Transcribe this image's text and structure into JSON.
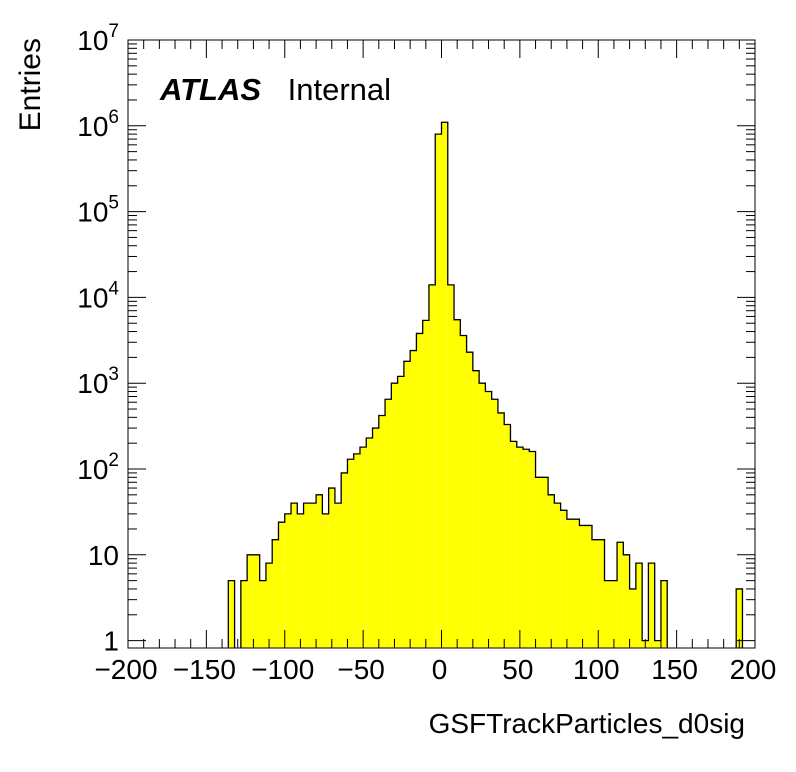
{
  "chart_data": {
    "type": "bar",
    "histogram": true,
    "ylabel": "Entries",
    "xlabel": "GSFTrackParticles_d0sig",
    "annotation": {
      "bold": "ATLAS",
      "normal": "Internal"
    },
    "xlim": [
      -200,
      200
    ],
    "ylim": [
      0.82,
      10000000
    ],
    "yscale": "log",
    "x_ticks": [
      "−200",
      "−150",
      "−100",
      "−50",
      "0",
      "50",
      "100",
      "150",
      "200"
    ],
    "y_ticks": [
      {
        "value": 1,
        "base": "1",
        "exp": ""
      },
      {
        "value": 10,
        "base": "10",
        "exp": ""
      },
      {
        "value": 100,
        "base": "10",
        "exp": "2"
      },
      {
        "value": 1000,
        "base": "10",
        "exp": "3"
      },
      {
        "value": 10000,
        "base": "10",
        "exp": "4"
      },
      {
        "value": 100000,
        "base": "10",
        "exp": "5"
      },
      {
        "value": 1000000,
        "base": "10",
        "exp": "6"
      },
      {
        "value": 10000000,
        "base": "10",
        "exp": "7"
      }
    ],
    "bin_width": 4,
    "fill_color": "#ffff00",
    "line_color": "#000000",
    "bins": [
      {
        "x": -134,
        "y": 5
      },
      {
        "x": -130,
        "y": 0
      },
      {
        "x": -126,
        "y": 5
      },
      {
        "x": -122,
        "y": 10
      },
      {
        "x": -118,
        "y": 10
      },
      {
        "x": -114,
        "y": 5
      },
      {
        "x": -110,
        "y": 8
      },
      {
        "x": -106,
        "y": 15
      },
      {
        "x": -102,
        "y": 24
      },
      {
        "x": -98,
        "y": 30
      },
      {
        "x": -94,
        "y": 40
      },
      {
        "x": -90,
        "y": 30
      },
      {
        "x": -86,
        "y": 40
      },
      {
        "x": -82,
        "y": 40
      },
      {
        "x": -78,
        "y": 50
      },
      {
        "x": -74,
        "y": 30
      },
      {
        "x": -70,
        "y": 60
      },
      {
        "x": -66,
        "y": 40
      },
      {
        "x": -62,
        "y": 90
      },
      {
        "x": -58,
        "y": 130
      },
      {
        "x": -54,
        "y": 150
      },
      {
        "x": -50,
        "y": 180
      },
      {
        "x": -46,
        "y": 230
      },
      {
        "x": -42,
        "y": 300
      },
      {
        "x": -38,
        "y": 420
      },
      {
        "x": -34,
        "y": 650
      },
      {
        "x": -30,
        "y": 1000
      },
      {
        "x": -26,
        "y": 1200
      },
      {
        "x": -22,
        "y": 1800
      },
      {
        "x": -18,
        "y": 2400
      },
      {
        "x": -14,
        "y": 3800
      },
      {
        "x": -10,
        "y": 5400
      },
      {
        "x": -6,
        "y": 14000
      },
      {
        "x": -2,
        "y": 800000
      },
      {
        "x": 2,
        "y": 1100000
      },
      {
        "x": 6,
        "y": 14000
      },
      {
        "x": 10,
        "y": 5500
      },
      {
        "x": 14,
        "y": 3600
      },
      {
        "x": 18,
        "y": 2300
      },
      {
        "x": 22,
        "y": 1400
      },
      {
        "x": 26,
        "y": 1000
      },
      {
        "x": 30,
        "y": 800
      },
      {
        "x": 34,
        "y": 650
      },
      {
        "x": 38,
        "y": 450
      },
      {
        "x": 42,
        "y": 330
      },
      {
        "x": 46,
        "y": 210
      },
      {
        "x": 50,
        "y": 180
      },
      {
        "x": 54,
        "y": 170
      },
      {
        "x": 58,
        "y": 160
      },
      {
        "x": 62,
        "y": 80
      },
      {
        "x": 66,
        "y": 80
      },
      {
        "x": 70,
        "y": 50
      },
      {
        "x": 74,
        "y": 40
      },
      {
        "x": 78,
        "y": 33
      },
      {
        "x": 82,
        "y": 26
      },
      {
        "x": 86,
        "y": 26
      },
      {
        "x": 90,
        "y": 22
      },
      {
        "x": 94,
        "y": 22
      },
      {
        "x": 98,
        "y": 15
      },
      {
        "x": 102,
        "y": 15
      },
      {
        "x": 106,
        "y": 5
      },
      {
        "x": 110,
        "y": 5
      },
      {
        "x": 114,
        "y": 14
      },
      {
        "x": 118,
        "y": 10
      },
      {
        "x": 122,
        "y": 4
      },
      {
        "x": 126,
        "y": 8
      },
      {
        "x": 130,
        "y": 1
      },
      {
        "x": 134,
        "y": 8
      },
      {
        "x": 138,
        "y": 1
      },
      {
        "x": 142,
        "y": 5
      },
      {
        "x": 190,
        "y": 4
      }
    ]
  }
}
